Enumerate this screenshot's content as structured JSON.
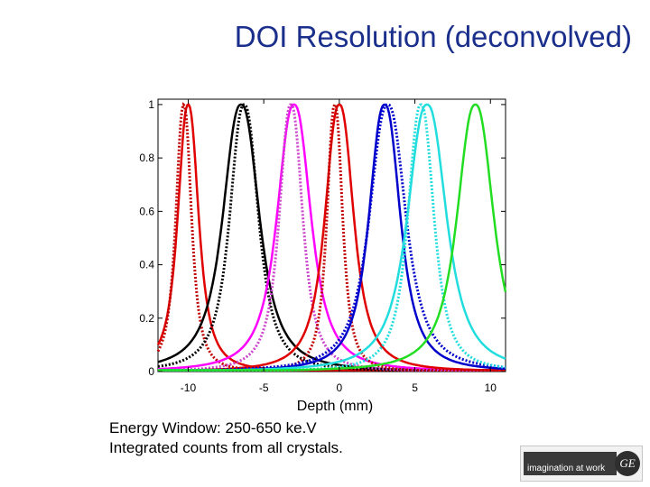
{
  "slide": {
    "title": "DOI Resolution (deconvolved)",
    "captions": [
      "Energy Window:  250-650 ke.V",
      "Integrated counts from all crystals."
    ],
    "logo": {
      "tagline": "imagination at work",
      "monogram": "GE"
    }
  },
  "chart_data": {
    "type": "line",
    "title": "DOI Resolution (deconvolved)",
    "xlabel": "Depth (mm)",
    "ylabel": "",
    "xlim": [
      -12,
      11
    ],
    "ylim": [
      0,
      1.02
    ],
    "x_ticks": [
      -10,
      -5,
      0,
      5,
      10
    ],
    "x_tick_labels": [
      "-10",
      "-5",
      "0",
      "5",
      "10"
    ],
    "y_ticks": [
      0,
      0.2,
      0.4,
      0.6,
      0.8,
      1
    ],
    "y_tick_labels": [
      "0",
      "0.2",
      "0.4",
      "0.6",
      "0.8",
      "1"
    ],
    "grid": false,
    "legend": "none",
    "series": [
      {
        "color": "#e00000",
        "style": "solid",
        "peak": -10.0,
        "fwhm": 1.6
      },
      {
        "color": "#c00000",
        "style": "dotted",
        "peak": -10.3,
        "fwhm": 1.2
      },
      {
        "color": "#000000",
        "style": "solid",
        "peak": -6.5,
        "fwhm": 2.8
      },
      {
        "color": "#000000",
        "style": "dotted",
        "peak": -6.3,
        "fwhm": 2.2
      },
      {
        "color": "#ff00ff",
        "style": "solid",
        "peak": -3.0,
        "fwhm": 2.6
      },
      {
        "color": "#cc44cc",
        "style": "dotted",
        "peak": -3.2,
        "fwhm": 1.8
      },
      {
        "color": "#e00000",
        "style": "solid",
        "peak": 0.0,
        "fwhm": 2.2
      },
      {
        "color": "#c00000",
        "style": "dotted",
        "peak": -0.3,
        "fwhm": 1.2
      },
      {
        "color": "#0000cc",
        "style": "solid",
        "peak": 3.0,
        "fwhm": 2.4
      },
      {
        "color": "#0000cc",
        "style": "dotted",
        "peak": 3.2,
        "fwhm": 2.8
      },
      {
        "color": "#22dddd",
        "style": "solid",
        "peak": 5.8,
        "fwhm": 3.0
      },
      {
        "color": "#22dddd",
        "style": "dotted",
        "peak": 5.4,
        "fwhm": 2.0
      },
      {
        "color": "#22dd22",
        "style": "solid",
        "peak": 9.0,
        "fwhm": 2.8
      }
    ]
  }
}
